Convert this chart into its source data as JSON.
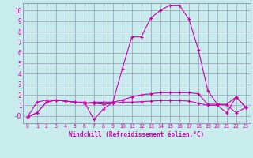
{
  "xlabel": "Windchill (Refroidissement éolien,°C)",
  "bg_color": "#c8ecec",
  "grid_color": "#9999bb",
  "line_color": "#cc00aa",
  "spine_color": "#9999bb",
  "xlim": [
    -0.5,
    23.5
  ],
  "ylim": [
    -0.7,
    10.7
  ],
  "xticks": [
    0,
    1,
    2,
    3,
    4,
    5,
    6,
    7,
    8,
    9,
    10,
    11,
    12,
    13,
    14,
    15,
    16,
    17,
    18,
    19,
    20,
    21,
    22,
    23
  ],
  "yticks": [
    0,
    1,
    2,
    3,
    4,
    5,
    6,
    7,
    8,
    9,
    10
  ],
  "ytick_labels": [
    "-0",
    "1",
    "2",
    "3",
    "4",
    "5",
    "6",
    "7",
    "8",
    "9",
    "10"
  ],
  "series": [
    {
      "x": [
        0,
        1,
        2,
        3,
        4,
        5,
        6,
        7,
        8,
        9,
        10,
        11,
        12,
        13,
        14,
        15,
        16,
        17,
        18,
        19,
        20,
        21,
        22,
        23
      ],
      "y": [
        -0.1,
        1.3,
        1.5,
        1.5,
        1.4,
        1.3,
        1.3,
        -0.35,
        0.65,
        1.3,
        4.5,
        7.5,
        7.5,
        9.3,
        10.0,
        10.5,
        10.5,
        9.2,
        6.3,
        2.4,
        1.1,
        1.1,
        1.8,
        0.8
      ]
    },
    {
      "x": [
        0,
        1,
        2,
        3,
        4,
        5,
        6,
        7,
        8,
        9,
        10,
        11,
        12,
        13,
        14,
        15,
        16,
        17,
        18,
        19,
        20,
        21,
        22,
        23
      ],
      "y": [
        -0.1,
        0.3,
        1.3,
        1.5,
        1.4,
        1.3,
        1.2,
        1.3,
        1.3,
        1.3,
        1.5,
        1.8,
        2.0,
        2.1,
        2.2,
        2.2,
        2.2,
        2.2,
        2.1,
        1.1,
        1.1,
        1.0,
        0.3,
        0.8
      ]
    },
    {
      "x": [
        0,
        1,
        2,
        3,
        4,
        5,
        6,
        7,
        8,
        9,
        10,
        11,
        12,
        13,
        14,
        15,
        16,
        17,
        18,
        19,
        20,
        21,
        22,
        23
      ],
      "y": [
        -0.1,
        0.3,
        1.3,
        1.5,
        1.4,
        1.3,
        1.2,
        1.2,
        1.1,
        1.2,
        1.3,
        1.3,
        1.35,
        1.4,
        1.45,
        1.45,
        1.45,
        1.4,
        1.2,
        1.0,
        1.0,
        0.3,
        1.8,
        0.8
      ]
    }
  ]
}
